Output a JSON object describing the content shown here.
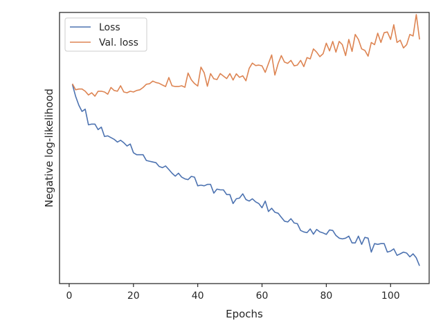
{
  "chart_data": {
    "type": "line",
    "title": "",
    "xlabel": "Epochs",
    "ylabel": "Negative log-likelihood",
    "xlim": [
      -3,
      112
    ],
    "ylim": [
      0,
      100
    ],
    "xticks": [
      0,
      20,
      40,
      60,
      80,
      100
    ],
    "yticks_shown": false,
    "grid": false,
    "legend_position": "top-left",
    "series": [
      {
        "name": "Loss",
        "color": "#4c72b0",
        "x": [
          1,
          2,
          3,
          4,
          5,
          6,
          7,
          8,
          9,
          10,
          11,
          12,
          13,
          14,
          15,
          16,
          17,
          18,
          19,
          20,
          21,
          22,
          23,
          24,
          25,
          26,
          27,
          28,
          29,
          30,
          31,
          32,
          33,
          34,
          35,
          36,
          37,
          38,
          39,
          40,
          41,
          42,
          43,
          44,
          45,
          46,
          47,
          48,
          49,
          50,
          51,
          52,
          53,
          54,
          55,
          56,
          57,
          58,
          59,
          60,
          61,
          62,
          63,
          64,
          65,
          66,
          67,
          68,
          69,
          70,
          71,
          72,
          73,
          74,
          75,
          76,
          77,
          78,
          79,
          80,
          81,
          82,
          83,
          84,
          85,
          86,
          87,
          88,
          89,
          90,
          91,
          92,
          93,
          94,
          95,
          96,
          97,
          98,
          99,
          100,
          101,
          102,
          103,
          104,
          105,
          106,
          107,
          108,
          109
        ],
        "values": [
          75.5,
          70.8,
          67.2,
          64.7,
          65.6,
          59.3,
          59.6,
          59.6,
          57.4,
          58.4,
          54.6,
          54.9,
          54.2,
          53.5,
          52.4,
          53.1,
          52.1,
          50.8,
          51.6,
          48.1,
          47.3,
          47.3,
          47.3,
          45.0,
          44.7,
          44.4,
          44.1,
          42.6,
          42.1,
          42.8,
          41.4,
          39.9,
          38.7,
          39.9,
          38.3,
          37.6,
          37.3,
          38.6,
          38.3,
          34.8,
          35.1,
          34.8,
          35.4,
          35.4,
          31.9,
          33.5,
          33.2,
          33.2,
          31.3,
          31.3,
          27.7,
          29.6,
          29.9,
          31.6,
          29.3,
          28.7,
          29.6,
          28.4,
          27.7,
          26.0,
          28.7,
          24.5,
          25.8,
          24.2,
          23.8,
          22.2,
          20.6,
          20.3,
          21.6,
          19.9,
          19.6,
          16.9,
          16.3,
          16.0,
          17.5,
          15.4,
          17.3,
          16.3,
          15.9,
          15.3,
          17.1,
          16.9,
          14.9,
          13.8,
          13.5,
          13.8,
          14.6,
          11.9,
          11.9,
          14.6,
          11.3,
          14.1,
          13.8,
          8.2,
          11.6,
          11.3,
          11.6,
          11.6,
          8.2,
          8.6,
          9.5,
          6.9,
          7.5,
          8.2,
          7.8,
          6.3,
          7.5,
          5.9,
          2.7
        ]
      },
      {
        "name": "Val. loss",
        "color": "#dd8452",
        "x": [
          1,
          2,
          3,
          4,
          5,
          6,
          7,
          8,
          9,
          10,
          11,
          12,
          13,
          14,
          15,
          16,
          17,
          18,
          19,
          20,
          21,
          22,
          23,
          24,
          25,
          26,
          27,
          28,
          29,
          30,
          31,
          32,
          33,
          34,
          35,
          36,
          37,
          38,
          39,
          40,
          41,
          42,
          43,
          44,
          45,
          46,
          47,
          48,
          49,
          50,
          51,
          52,
          53,
          54,
          55,
          56,
          57,
          58,
          59,
          60,
          61,
          62,
          63,
          64,
          65,
          66,
          67,
          68,
          69,
          70,
          71,
          72,
          73,
          74,
          75,
          76,
          77,
          78,
          79,
          80,
          81,
          82,
          83,
          84,
          85,
          86,
          87,
          88,
          89,
          90,
          91,
          92,
          93,
          94,
          95,
          96,
          97,
          98,
          99,
          100,
          101,
          102,
          103,
          104,
          105,
          106,
          107,
          108,
          109
        ],
        "values": [
          75.8,
          73.4,
          73.7,
          73.7,
          72.8,
          71.3,
          72.2,
          70.8,
          72.8,
          72.8,
          72.5,
          71.6,
          74.3,
          73.1,
          72.8,
          75.0,
          72.5,
          72.2,
          72.8,
          72.5,
          73.1,
          73.4,
          74.3,
          75.6,
          75.8,
          76.9,
          76.3,
          76.0,
          75.3,
          74.7,
          78.3,
          75.0,
          74.7,
          74.7,
          75.0,
          74.4,
          80.1,
          77.4,
          75.9,
          74.9,
          82.5,
          80.2,
          74.8,
          79.9,
          77.8,
          77.5,
          79.9,
          78.9,
          77.9,
          79.9,
          77.3,
          79.8,
          78.4,
          79.0,
          77.0,
          82.0,
          84.1,
          83.1,
          83.3,
          83.0,
          80.4,
          83.9,
          87.4,
          79.3,
          83.9,
          87.1,
          84.5,
          84.0,
          85.2,
          83.0,
          83.3,
          85.2,
          82.7,
          86.3,
          85.8,
          89.8,
          88.5,
          86.7,
          87.9,
          92.1,
          89.0,
          92.8,
          88.5,
          92.8,
          91.5,
          87.1,
          93.6,
          88.8,
          95.6,
          93.6,
          89.8,
          89.2,
          86.9,
          92.4,
          91.5,
          96.1,
          92.4,
          96.3,
          96.6,
          93.6,
          99.5,
          92.4,
          93.3,
          90.2,
          91.5,
          95.6,
          95.0,
          103.6,
          93.6
        ]
      }
    ]
  }
}
